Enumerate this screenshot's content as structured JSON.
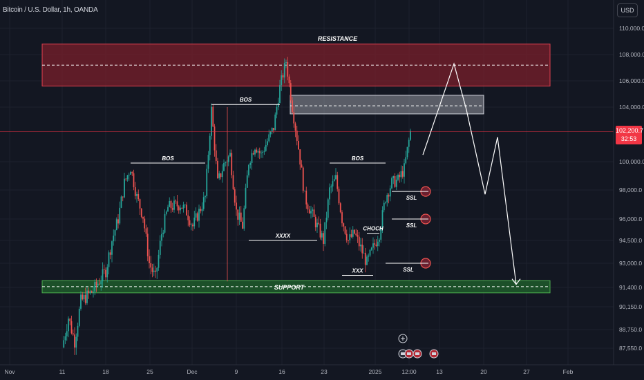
{
  "header": {
    "title": "Bitcoin / U.S. Dollar, 1h, OANDA",
    "currency": "USD"
  },
  "price_tag": {
    "price": "102,200.7",
    "countdown": "32:53"
  },
  "colors": {
    "background": "#131722",
    "grid": "#1e222d",
    "bull": "#26a69a",
    "bear": "#ef5350",
    "resistance_fill": "#7a1f2b",
    "resistance_border": "#e0414f",
    "support_fill": "#1e5a2a",
    "support_border": "#4caf50",
    "current_price": "#f23645",
    "annotation": "#ffffff"
  },
  "chart_data": {
    "type": "candlestick",
    "title": "Bitcoin / U.S. Dollar, 1h, OANDA",
    "ylim": [
      86500,
      111500
    ],
    "y_ticks": [
      110000,
      108000,
      106000,
      104000,
      100000,
      98000,
      96000,
      94500,
      93000,
      91400,
      90150,
      88750,
      87550
    ],
    "y_tick_labels": [
      "110,000.0",
      "108,000.0",
      "106,000.0",
      "104,000.0",
      "100,000.0",
      "98,000.0",
      "96,000.0",
      "94,500.0",
      "93,000.0",
      "91,400.0",
      "90,150.0",
      "88,750.0",
      "87,550.0"
    ],
    "x_ticks": [
      "Nov",
      "11",
      "18",
      "25",
      "Dec",
      "9",
      "16",
      "23",
      "2025",
      "12:00",
      "13",
      "20",
      "27",
      "Feb"
    ],
    "current_price": 102200.7,
    "price_path": [
      [
        "2024-11-11",
        87600
      ],
      [
        "2024-11-12",
        89500
      ],
      [
        "2024-11-13",
        88000
      ],
      [
        "2024-11-14",
        90500
      ],
      [
        "2024-11-16",
        91200
      ],
      [
        "2024-11-18",
        92500
      ],
      [
        "2024-11-19",
        94500
      ],
      [
        "2024-11-20",
        96000
      ],
      [
        "2024-11-21",
        98500
      ],
      [
        "2024-11-22",
        99600
      ],
      [
        "2024-11-23",
        97500
      ],
      [
        "2024-11-24",
        96200
      ],
      [
        "2024-11-25",
        93000
      ],
      [
        "2024-11-26",
        92000
      ],
      [
        "2024-11-27",
        95000
      ],
      [
        "2024-11-28",
        96800
      ],
      [
        "2024-11-30",
        97000
      ],
      [
        "2024-12-01",
        96500
      ],
      [
        "2024-12-02",
        95500
      ],
      [
        "2024-12-03",
        96500
      ],
      [
        "2024-12-04",
        97500
      ],
      [
        "2024-12-05",
        103800
      ],
      [
        "2024-12-06",
        98500
      ],
      [
        "2024-12-07",
        99800
      ],
      [
        "2024-12-08",
        100500
      ],
      [
        "2024-12-09",
        96500
      ],
      [
        "2024-12-10",
        95500
      ],
      [
        "2024-12-11",
        100000
      ],
      [
        "2024-12-12",
        101200
      ],
      [
        "2024-12-13",
        100500
      ],
      [
        "2024-12-14",
        101500
      ],
      [
        "2024-12-15",
        102500
      ],
      [
        "2024-12-16",
        105500
      ],
      [
        "2024-12-17",
        107500
      ],
      [
        "2024-12-18",
        104000
      ],
      [
        "2024-12-19",
        101000
      ],
      [
        "2024-12-20",
        97500
      ],
      [
        "2024-12-21",
        96500
      ],
      [
        "2024-12-22",
        95500
      ],
      [
        "2024-12-23",
        94500
      ],
      [
        "2024-12-24",
        98000
      ],
      [
        "2024-12-25",
        98800
      ],
      [
        "2024-12-26",
        96000
      ],
      [
        "2024-12-27",
        94500
      ],
      [
        "2024-12-28",
        95000
      ],
      [
        "2024-12-29",
        94000
      ],
      [
        "2024-12-30",
        93000
      ],
      [
        "2024-12-31",
        94000
      ],
      [
        "2025-01-01",
        95000
      ],
      [
        "2025-01-02",
        97500
      ],
      [
        "2025-01-03",
        98500
      ],
      [
        "2025-01-04",
        98700
      ],
      [
        "2025-01-05",
        99500
      ],
      [
        "2025-01-06",
        102200
      ]
    ],
    "zones": [
      {
        "name": "RESISTANCE",
        "kind": "resistance",
        "from": "2024-11-01",
        "to": "2025-01-26",
        "y_low": 105600,
        "y_high": 108800,
        "mid": 107200
      },
      {
        "name": "",
        "kind": "supply",
        "from": "2024-12-17",
        "to": "2025-01-14",
        "y_low": 103500,
        "y_high": 104900,
        "mid": 104100
      },
      {
        "name": "SUPPORT",
        "kind": "support",
        "from": "2024-11-01",
        "to": "2025-01-26",
        "y_low": 91050,
        "y_high": 91850,
        "mid": 91450
      }
    ],
    "annotations": [
      {
        "label": "BOS",
        "from": "2024-11-22",
        "to": "2024-12-04",
        "y": 99900
      },
      {
        "label": "BOS",
        "from": "2024-12-05",
        "to": "2024-12-16",
        "y": 104200
      },
      {
        "label": "BOS",
        "from": "2024-12-24",
        "to": "2025-01-02",
        "y": 99900
      },
      {
        "label": "XXXX",
        "from": "2024-12-11",
        "to": "2024-12-22",
        "y": 94500
      },
      {
        "label": "XXX",
        "from": "2024-12-26",
        "to": "2024-12-31",
        "y": 92200
      },
      {
        "label": "CHOCH",
        "from": "2024-12-30",
        "to": "2025-01-01",
        "y": 95000
      },
      {
        "label": "SSL",
        "from": "2025-01-03",
        "to": "2025-01-06",
        "y": 97900
      },
      {
        "label": "SSL",
        "from": "2025-01-03",
        "to": "2025-01-06",
        "y": 96000
      },
      {
        "label": "SSL",
        "from": "2025-01-02",
        "to": "2025-01-06",
        "y": 93000
      }
    ],
    "projection": [
      [
        "2025-01-08",
        100500
      ],
      [
        "2025-01-13",
        107300
      ],
      [
        "2025-01-15",
        103800
      ],
      [
        "2025-01-18",
        97700
      ],
      [
        "2025-01-20",
        101800
      ],
      [
        "2025-01-23",
        91600
      ]
    ]
  }
}
